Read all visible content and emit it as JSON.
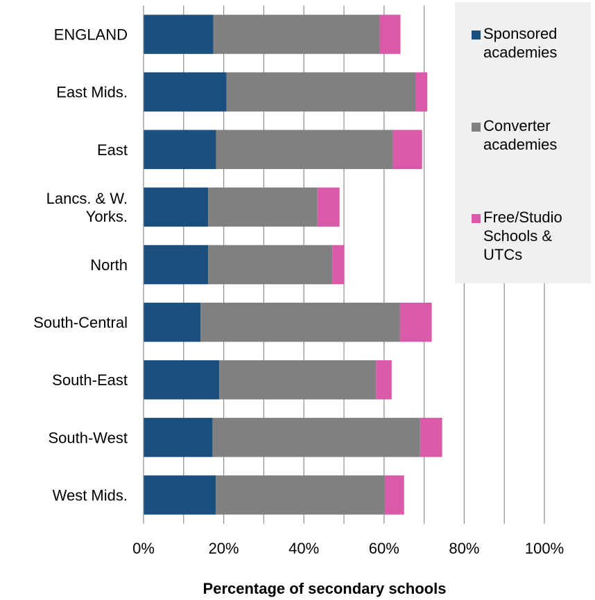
{
  "chart_data": {
    "type": "bar",
    "orientation": "horizontal",
    "stacked": true,
    "categories": [
      "ENGLAND",
      "East Mids.",
      "East",
      "Lancs. & W. Yorks.",
      "North",
      "South-Central",
      "South-East",
      "South-West",
      "West Mids."
    ],
    "category_lines": [
      [
        "ENGLAND"
      ],
      [
        "East Mids."
      ],
      [
        "East"
      ],
      [
        "Lancs. & W.",
        "Yorks."
      ],
      [
        "North"
      ],
      [
        "South-Central"
      ],
      [
        "South-East"
      ],
      [
        "South-West"
      ],
      [
        "West Mids."
      ]
    ],
    "series": [
      {
        "name": "Sponsored academies",
        "legend_lines": [
          "Sponsored",
          "academies"
        ],
        "color": "#1a4f7e",
        "values": [
          17.4,
          20.7,
          18.1,
          16.1,
          16.1,
          14.2,
          18.9,
          17.2,
          18.0
        ]
      },
      {
        "name": "Converter academies",
        "legend_lines": [
          "Converter",
          "academies"
        ],
        "color": "#808080",
        "values": [
          41.5,
          47.2,
          44.1,
          27.3,
          31.0,
          49.8,
          39.1,
          51.8,
          42.2
        ]
      },
      {
        "name": "Free/Studio Schools & UTCs",
        "legend_lines": [
          "Free/Studio",
          "Schools &",
          "UTCs"
        ],
        "color": "#d85aa8",
        "values": [
          5.2,
          2.9,
          7.3,
          5.5,
          3.0,
          7.9,
          3.9,
          5.5,
          4.8
        ]
      }
    ],
    "xlabel": "Percentage of secondary schools",
    "ylabel": "",
    "xlim": [
      0,
      100
    ],
    "xticks": [
      "0%",
      "20%",
      "40%",
      "60%",
      "80%",
      "100%"
    ],
    "grid": true,
    "legend_position": "right"
  }
}
